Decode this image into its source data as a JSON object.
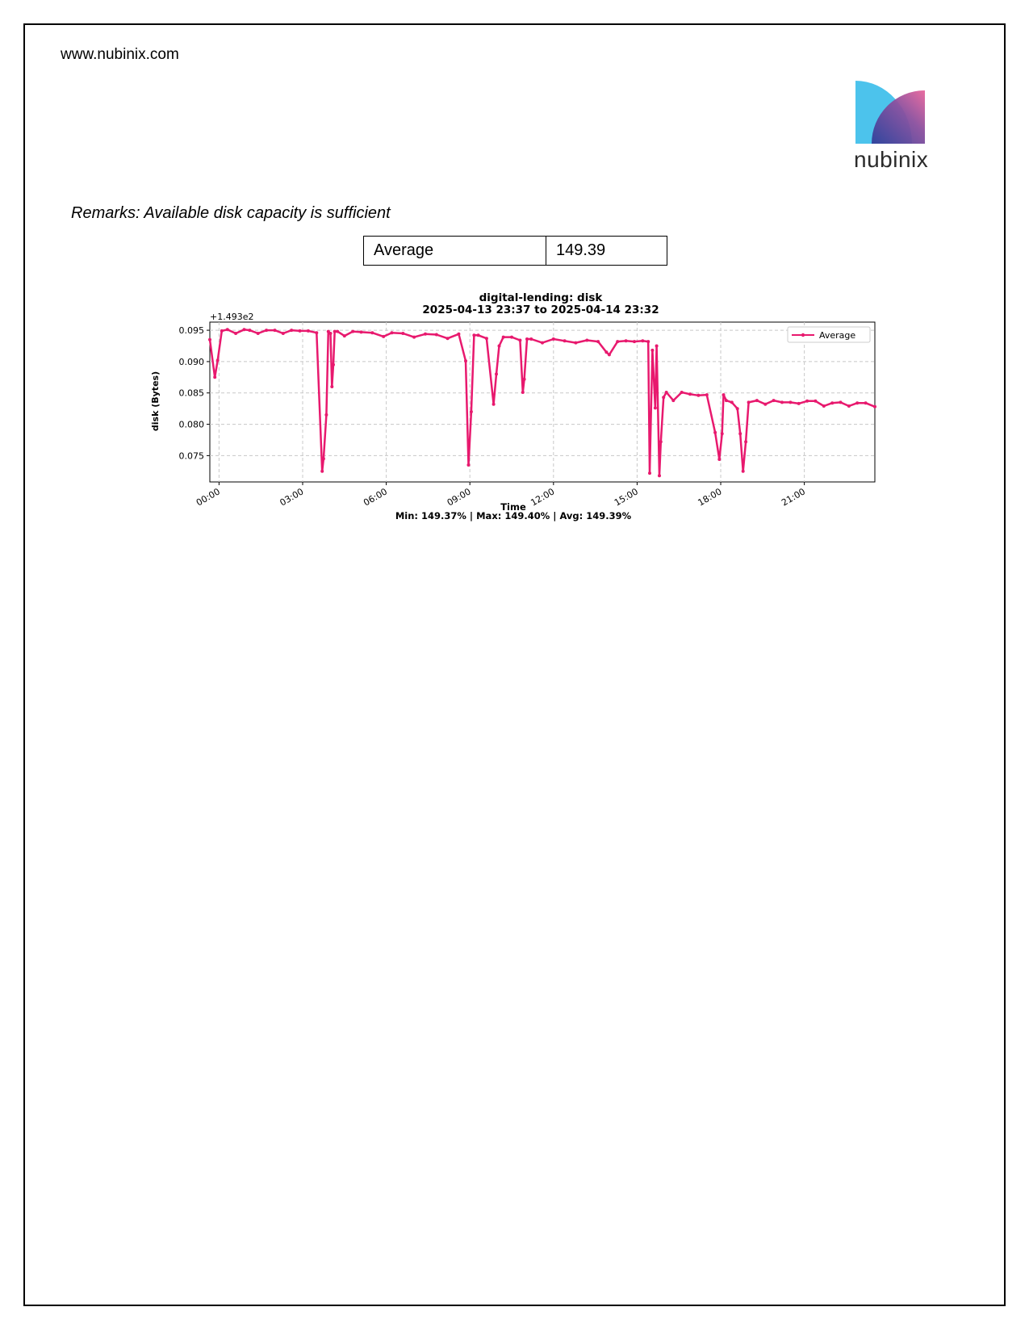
{
  "header": {
    "site_url": "www.nubinix.com",
    "logo_text": "nubinix",
    "logo_colors": [
      "#4cc3ec",
      "#3f4a9c",
      "#e8659b"
    ]
  },
  "remarks": "Remarks: Available disk capacity is sufficient",
  "summary_table": {
    "label": "Average",
    "value": "149.39"
  },
  "chart_data": {
    "type": "line",
    "title": "digital-lending: disk",
    "subtitle": "2025-04-13 23:37 to 2025-04-14 23:32",
    "xlabel": "Time",
    "ylabel": "disk (Bytes)",
    "offset_label": "+1.493e2",
    "footer": "Min: 149.37% | Max: 149.40% | Avg: 149.39%",
    "x_ticks": [
      "00:00",
      "03:00",
      "06:00",
      "09:00",
      "12:00",
      "15:00",
      "18:00",
      "21:00"
    ],
    "y_ticks": [
      "0.075",
      "0.080",
      "0.085",
      "0.090",
      "0.095"
    ],
    "ylim": [
      0.0708,
      0.0963
    ],
    "xlim_hours": [
      -0.33,
      23.53
    ],
    "grid": true,
    "legend": "top-right",
    "line_color": "#e8196e",
    "series": [
      {
        "name": "Average",
        "x_hours": [
          -0.33,
          -0.15,
          -0.05,
          0.1,
          0.3,
          0.6,
          0.9,
          1.1,
          1.4,
          1.7,
          2.0,
          2.3,
          2.6,
          2.9,
          3.2,
          3.5,
          3.7,
          3.75,
          3.85,
          3.92,
          4.0,
          4.05,
          4.1,
          4.15,
          4.25,
          4.5,
          4.8,
          5.1,
          5.5,
          5.9,
          6.2,
          6.6,
          7.0,
          7.4,
          7.8,
          8.2,
          8.6,
          8.85,
          8.95,
          9.05,
          9.15,
          9.3,
          9.6,
          9.85,
          9.95,
          10.05,
          10.2,
          10.5,
          10.8,
          10.9,
          10.95,
          11.05,
          11.2,
          11.6,
          12.0,
          12.4,
          12.8,
          13.2,
          13.6,
          13.9,
          14.0,
          14.3,
          14.6,
          14.9,
          15.2,
          15.4,
          15.45,
          15.55,
          15.65,
          15.7,
          15.8,
          15.85,
          15.95,
          16.05,
          16.3,
          16.6,
          16.9,
          17.2,
          17.5,
          17.8,
          17.95,
          18.05,
          18.1,
          18.2,
          18.4,
          18.6,
          18.7,
          18.8,
          18.9,
          19.0,
          19.3,
          19.6,
          19.9,
          20.2,
          20.5,
          20.8,
          21.1,
          21.4,
          21.7,
          22.0,
          22.3,
          22.6,
          22.9,
          23.2,
          23.53
        ],
        "y_offset_values": [
          0.0935,
          0.0875,
          0.0902,
          0.0949,
          0.0951,
          0.0945,
          0.0951,
          0.095,
          0.0945,
          0.095,
          0.095,
          0.0945,
          0.095,
          0.0949,
          0.0949,
          0.0946,
          0.0725,
          0.0745,
          0.0815,
          0.0948,
          0.0945,
          0.086,
          0.0895,
          0.0948,
          0.0948,
          0.0941,
          0.0948,
          0.0947,
          0.0946,
          0.094,
          0.0946,
          0.0945,
          0.0939,
          0.0944,
          0.0943,
          0.0937,
          0.0944,
          0.0901,
          0.0735,
          0.082,
          0.0942,
          0.0942,
          0.0937,
          0.0832,
          0.088,
          0.0925,
          0.0939,
          0.0939,
          0.0934,
          0.0851,
          0.0872,
          0.0936,
          0.0936,
          0.093,
          0.0936,
          0.0933,
          0.093,
          0.0934,
          0.0932,
          0.0915,
          0.0911,
          0.0932,
          0.0933,
          0.0932,
          0.0933,
          0.0932,
          0.0722,
          0.0918,
          0.0826,
          0.0925,
          0.0718,
          0.0772,
          0.0843,
          0.0851,
          0.0838,
          0.0851,
          0.0848,
          0.0846,
          0.0847,
          0.0787,
          0.0744,
          0.0785,
          0.0847,
          0.0838,
          0.0835,
          0.0825,
          0.0785,
          0.0725,
          0.0772,
          0.0835,
          0.0838,
          0.0832,
          0.0838,
          0.0835,
          0.0835,
          0.0833,
          0.0837,
          0.0837,
          0.0829,
          0.0834,
          0.0835,
          0.0829,
          0.0834,
          0.0834,
          0.0828
        ]
      }
    ]
  }
}
